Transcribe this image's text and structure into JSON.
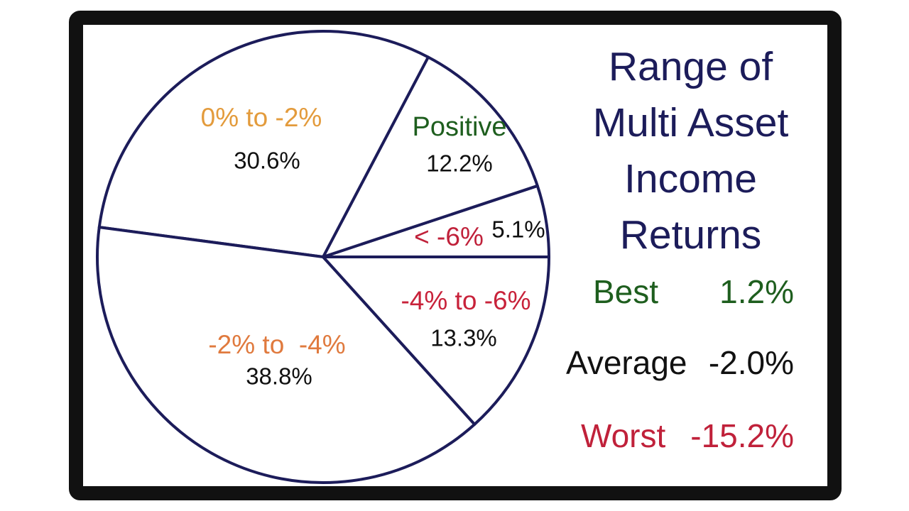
{
  "chart_data": {
    "type": "pie",
    "title": "Range of Multi Asset Income Returns",
    "categories": [
      "< -6%",
      "Positive",
      "0% to -2%",
      "-2% to  -4%",
      "-4% to -6%"
    ],
    "values": [
      5.1,
      12.2,
      30.6,
      38.8,
      13.3
    ],
    "value_labels": [
      "5.1%",
      "12.2%",
      "30.6%",
      "38.8%",
      "13.3%"
    ],
    "label_colors": [
      "#c0213a",
      "#1e5e1e",
      "#e39b3c",
      "#e07a3e",
      "#c8223a"
    ],
    "color": "#ffffff",
    "edge_color": "#1c1c5a",
    "direction": "counterclockwise",
    "annotations": [
      {
        "label": "Best",
        "value": "1.2%",
        "color": "#1e5e1e"
      },
      {
        "label": "Average",
        "value": "-2.0%",
        "color": "#111111"
      },
      {
        "label": "Worst",
        "value": "-15.2%",
        "color": "#c0213a"
      }
    ]
  }
}
